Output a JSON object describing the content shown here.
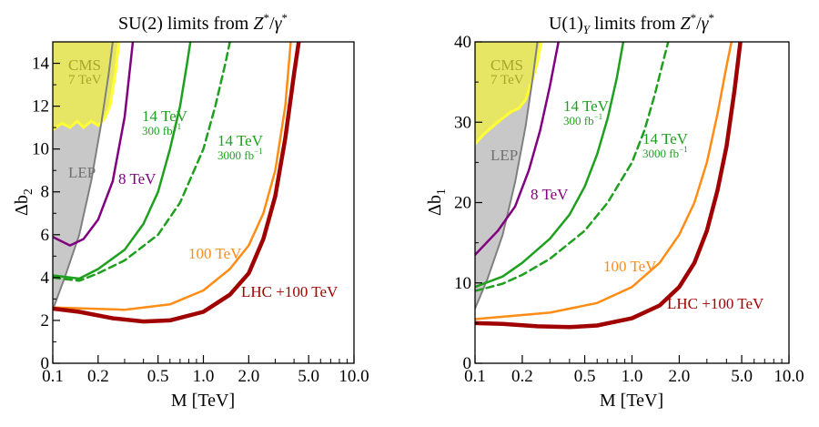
{
  "chart_data": [
    {
      "type": "line",
      "title_parts": {
        "pre": "SU(2) limits from ",
        "z": "Z",
        "star": "*",
        "slash": "/",
        "gamma": "γ",
        "star2": "*"
      },
      "xlabel": "M  [TeV]",
      "ylabel": {
        "base": "Δb",
        "sub": "2"
      },
      "xscale": "log",
      "xlim": [
        0.1,
        10
      ],
      "ylim": [
        0,
        15
      ],
      "xticks": [
        {
          "v": 0.1,
          "label": "0.1"
        },
        {
          "v": 0.2,
          "label": "0.2"
        },
        {
          "v": 0.5,
          "label": "0.5"
        },
        {
          "v": 1,
          "label": "1.0"
        },
        {
          "v": 2,
          "label": "2.0"
        },
        {
          "v": 5,
          "label": "5.0"
        },
        {
          "v": 10,
          "label": "10.0"
        }
      ],
      "yticks": [
        {
          "v": 0,
          "label": "0"
        },
        {
          "v": 2,
          "label": "2"
        },
        {
          "v": 4,
          "label": "4"
        },
        {
          "v": 6,
          "label": "6"
        },
        {
          "v": 8,
          "label": "8"
        },
        {
          "v": 10,
          "label": "10"
        },
        {
          "v": 12,
          "label": "12"
        },
        {
          "v": 14,
          "label": "14"
        }
      ],
      "regions": [
        {
          "name": "LEP",
          "fill": "#c8c8c8",
          "boundary_color": "#808080",
          "boundary": [
            [
              0.1,
              2.5
            ],
            [
              0.12,
              4.0
            ],
            [
              0.15,
              6.0
            ],
            [
              0.18,
              8.5
            ],
            [
              0.21,
              11.2
            ],
            [
              0.235,
              13.5
            ],
            [
              0.25,
              15
            ]
          ]
        },
        {
          "name": "CMS",
          "fill": "#e6e664",
          "boundary_color": "#ffff33",
          "boundary": [
            [
              0.1,
              10.9
            ],
            [
              0.115,
              11.2
            ],
            [
              0.13,
              11.0
            ],
            [
              0.145,
              11.3
            ],
            [
              0.16,
              11.0
            ],
            [
              0.18,
              11.3
            ],
            [
              0.2,
              11.1
            ],
            [
              0.22,
              11.4
            ],
            [
              0.24,
              12.0
            ],
            [
              0.26,
              13.5
            ],
            [
              0.275,
              15
            ]
          ]
        }
      ],
      "series": [
        {
          "name": "8 TeV",
          "color": "#800080",
          "width": 2.5,
          "dash": "",
          "points": [
            [
              0.1,
              5.9
            ],
            [
              0.13,
              5.5
            ],
            [
              0.16,
              5.8
            ],
            [
              0.2,
              6.7
            ],
            [
              0.25,
              8.5
            ],
            [
              0.3,
              11.5
            ],
            [
              0.34,
              15
            ]
          ]
        },
        {
          "name": "14 TeV 300 fb-1",
          "color": "#1ea01e",
          "width": 2.5,
          "dash": "",
          "points": [
            [
              0.1,
              4.1
            ],
            [
              0.15,
              3.95
            ],
            [
              0.2,
              4.4
            ],
            [
              0.3,
              5.3
            ],
            [
              0.4,
              6.5
            ],
            [
              0.5,
              8.0
            ],
            [
              0.6,
              10.0
            ],
            [
              0.7,
              12.0
            ],
            [
              0.78,
              14.0
            ],
            [
              0.82,
              15
            ]
          ]
        },
        {
          "name": "14 TeV 3000 fb-1",
          "color": "#1ea01e",
          "width": 2.5,
          "dash": "8,5",
          "points": [
            [
              0.1,
              4.0
            ],
            [
              0.15,
              3.85
            ],
            [
              0.2,
              4.2
            ],
            [
              0.3,
              4.8
            ],
            [
              0.5,
              6.0
            ],
            [
              0.7,
              7.5
            ],
            [
              1.0,
              10.0
            ],
            [
              1.2,
              12.0
            ],
            [
              1.4,
              14.0
            ],
            [
              1.5,
              15
            ]
          ]
        },
        {
          "name": "100 TeV",
          "color": "#ff8c14",
          "width": 2.5,
          "dash": "",
          "points": [
            [
              0.1,
              2.6
            ],
            [
              0.3,
              2.5
            ],
            [
              0.6,
              2.75
            ],
            [
              1.0,
              3.4
            ],
            [
              1.5,
              4.4
            ],
            [
              2.0,
              5.5
            ],
            [
              2.5,
              7.0
            ],
            [
              3.0,
              9.0
            ],
            [
              3.5,
              12.0
            ],
            [
              3.8,
              15
            ]
          ]
        },
        {
          "name": "LHC +100 TeV",
          "color": "#a00000",
          "width": 4.5,
          "dash": "",
          "points": [
            [
              0.1,
              2.55
            ],
            [
              0.15,
              2.4
            ],
            [
              0.25,
              2.1
            ],
            [
              0.4,
              1.95
            ],
            [
              0.6,
              2.0
            ],
            [
              1.0,
              2.4
            ],
            [
              1.5,
              3.2
            ],
            [
              2.0,
              4.2
            ],
            [
              2.5,
              5.8
            ],
            [
              3.0,
              7.8
            ],
            [
              3.5,
              10.5
            ],
            [
              4.0,
              13.5
            ],
            [
              4.3,
              15
            ]
          ]
        }
      ],
      "annotations": {
        "cms": {
          "line1": "CMS",
          "line2": "7 TeV"
        },
        "lep": "LEP",
        "tev8": "8 TeV",
        "tev14a": {
          "line1": "14 TeV",
          "line2": "300 fb",
          "sup": "−1"
        },
        "tev14b": {
          "line1": "14 TeV",
          "line2": "3000 fb",
          "sup": "−1"
        },
        "tev100": "100 TeV",
        "lhc100": "LHC +100 TeV"
      }
    },
    {
      "type": "line",
      "title_parts": {
        "pre": "U(1)",
        "ysub": "Y",
        "post": " limits from ",
        "z": "Z",
        "star": "*",
        "slash": "/",
        "gamma": "γ",
        "star2": "*"
      },
      "xlabel": "M  [TeV]",
      "ylabel": {
        "base": "Δb",
        "sub": "1"
      },
      "xscale": "log",
      "xlim": [
        0.1,
        10
      ],
      "ylim": [
        0,
        40
      ],
      "xticks": [
        {
          "v": 0.1,
          "label": "0.1"
        },
        {
          "v": 0.2,
          "label": "0.2"
        },
        {
          "v": 0.5,
          "label": "0.5"
        },
        {
          "v": 1,
          "label": "1.0"
        },
        {
          "v": 2,
          "label": "2.0"
        },
        {
          "v": 5,
          "label": "5.0"
        },
        {
          "v": 10,
          "label": "10.0"
        }
      ],
      "yticks": [
        {
          "v": 0,
          "label": "0"
        },
        {
          "v": 10,
          "label": "10"
        },
        {
          "v": 20,
          "label": "20"
        },
        {
          "v": 30,
          "label": "30"
        },
        {
          "v": 40,
          "label": "40"
        }
      ],
      "regions": [
        {
          "name": "LEP",
          "fill": "#c8c8c8",
          "boundary_color": "#808080",
          "boundary": [
            [
              0.1,
              6.8
            ],
            [
              0.12,
              10.5
            ],
            [
              0.15,
              16.0
            ],
            [
              0.18,
              22.5
            ],
            [
              0.21,
              29.5
            ],
            [
              0.235,
              36.0
            ],
            [
              0.25,
              40
            ]
          ]
        },
        {
          "name": "CMS",
          "fill": "#e6e664",
          "boundary_color": "#ffff33",
          "boundary": [
            [
              0.1,
              27.3
            ],
            [
              0.115,
              28.6
            ],
            [
              0.13,
              29.5
            ],
            [
              0.15,
              30.5
            ],
            [
              0.17,
              31.3
            ],
            [
              0.19,
              31.7
            ],
            [
              0.21,
              32.8
            ],
            [
              0.23,
              35.0
            ],
            [
              0.25,
              37.5
            ],
            [
              0.265,
              40
            ]
          ]
        }
      ],
      "series": [
        {
          "name": "8 TeV",
          "color": "#800080",
          "width": 2.5,
          "dash": "",
          "points": [
            [
              0.1,
              13.5
            ],
            [
              0.14,
              16.5
            ],
            [
              0.18,
              19.5
            ],
            [
              0.22,
              24.0
            ],
            [
              0.26,
              29.0
            ],
            [
              0.3,
              34.5
            ],
            [
              0.34,
              40
            ]
          ]
        },
        {
          "name": "14 TeV 300 fb-1",
          "color": "#1ea01e",
          "width": 2.5,
          "dash": "",
          "points": [
            [
              0.1,
              9.5
            ],
            [
              0.15,
              10.8
            ],
            [
              0.2,
              12.5
            ],
            [
              0.3,
              15.5
            ],
            [
              0.4,
              18.5
            ],
            [
              0.5,
              22.0
            ],
            [
              0.6,
              26.0
            ],
            [
              0.7,
              30.5
            ],
            [
              0.8,
              35.5
            ],
            [
              0.88,
              40
            ]
          ]
        },
        {
          "name": "14 TeV 3000 fb-1",
          "color": "#1ea01e",
          "width": 2.5,
          "dash": "8,5",
          "points": [
            [
              0.1,
              9.0
            ],
            [
              0.15,
              9.9
            ],
            [
              0.2,
              11.0
            ],
            [
              0.3,
              13.0
            ],
            [
              0.5,
              16.5
            ],
            [
              0.7,
              20.0
            ],
            [
              1.0,
              25.0
            ],
            [
              1.2,
              29.0
            ],
            [
              1.4,
              33.5
            ],
            [
              1.6,
              38.0
            ],
            [
              1.7,
              40
            ]
          ]
        },
        {
          "name": "100 TeV",
          "color": "#ff8c14",
          "width": 2.5,
          "dash": "",
          "points": [
            [
              0.1,
              5.5
            ],
            [
              0.3,
              6.3
            ],
            [
              0.6,
              7.5
            ],
            [
              1.0,
              9.5
            ],
            [
              1.5,
              12.5
            ],
            [
              2.0,
              16.0
            ],
            [
              2.5,
              20.0
            ],
            [
              3.0,
              25.0
            ],
            [
              3.5,
              31.0
            ],
            [
              4.0,
              37.0
            ],
            [
              4.3,
              40
            ]
          ]
        },
        {
          "name": "LHC +100 TeV",
          "color": "#a00000",
          "width": 4.5,
          "dash": "",
          "points": [
            [
              0.1,
              5.0
            ],
            [
              0.15,
              4.9
            ],
            [
              0.25,
              4.6
            ],
            [
              0.4,
              4.5
            ],
            [
              0.6,
              4.7
            ],
            [
              1.0,
              5.6
            ],
            [
              1.5,
              7.2
            ],
            [
              2.0,
              9.5
            ],
            [
              2.5,
              12.5
            ],
            [
              3.0,
              16.5
            ],
            [
              3.5,
              21.5
            ],
            [
              4.0,
              27.0
            ],
            [
              4.5,
              34.0
            ],
            [
              4.9,
              40
            ]
          ]
        }
      ],
      "annotations": {
        "cms": {
          "line1": "CMS",
          "line2": "7 TeV"
        },
        "lep": "LEP",
        "tev8": "8 TeV",
        "tev14a": {
          "line1": "14 TeV",
          "line2": "300 fb",
          "sup": "−1"
        },
        "tev14b": {
          "line1": "14 TeV",
          "line2": "3000 fb",
          "sup": "−1"
        },
        "tev100": "100 TeV",
        "lhc100": "LHC +100 TeV"
      }
    }
  ]
}
